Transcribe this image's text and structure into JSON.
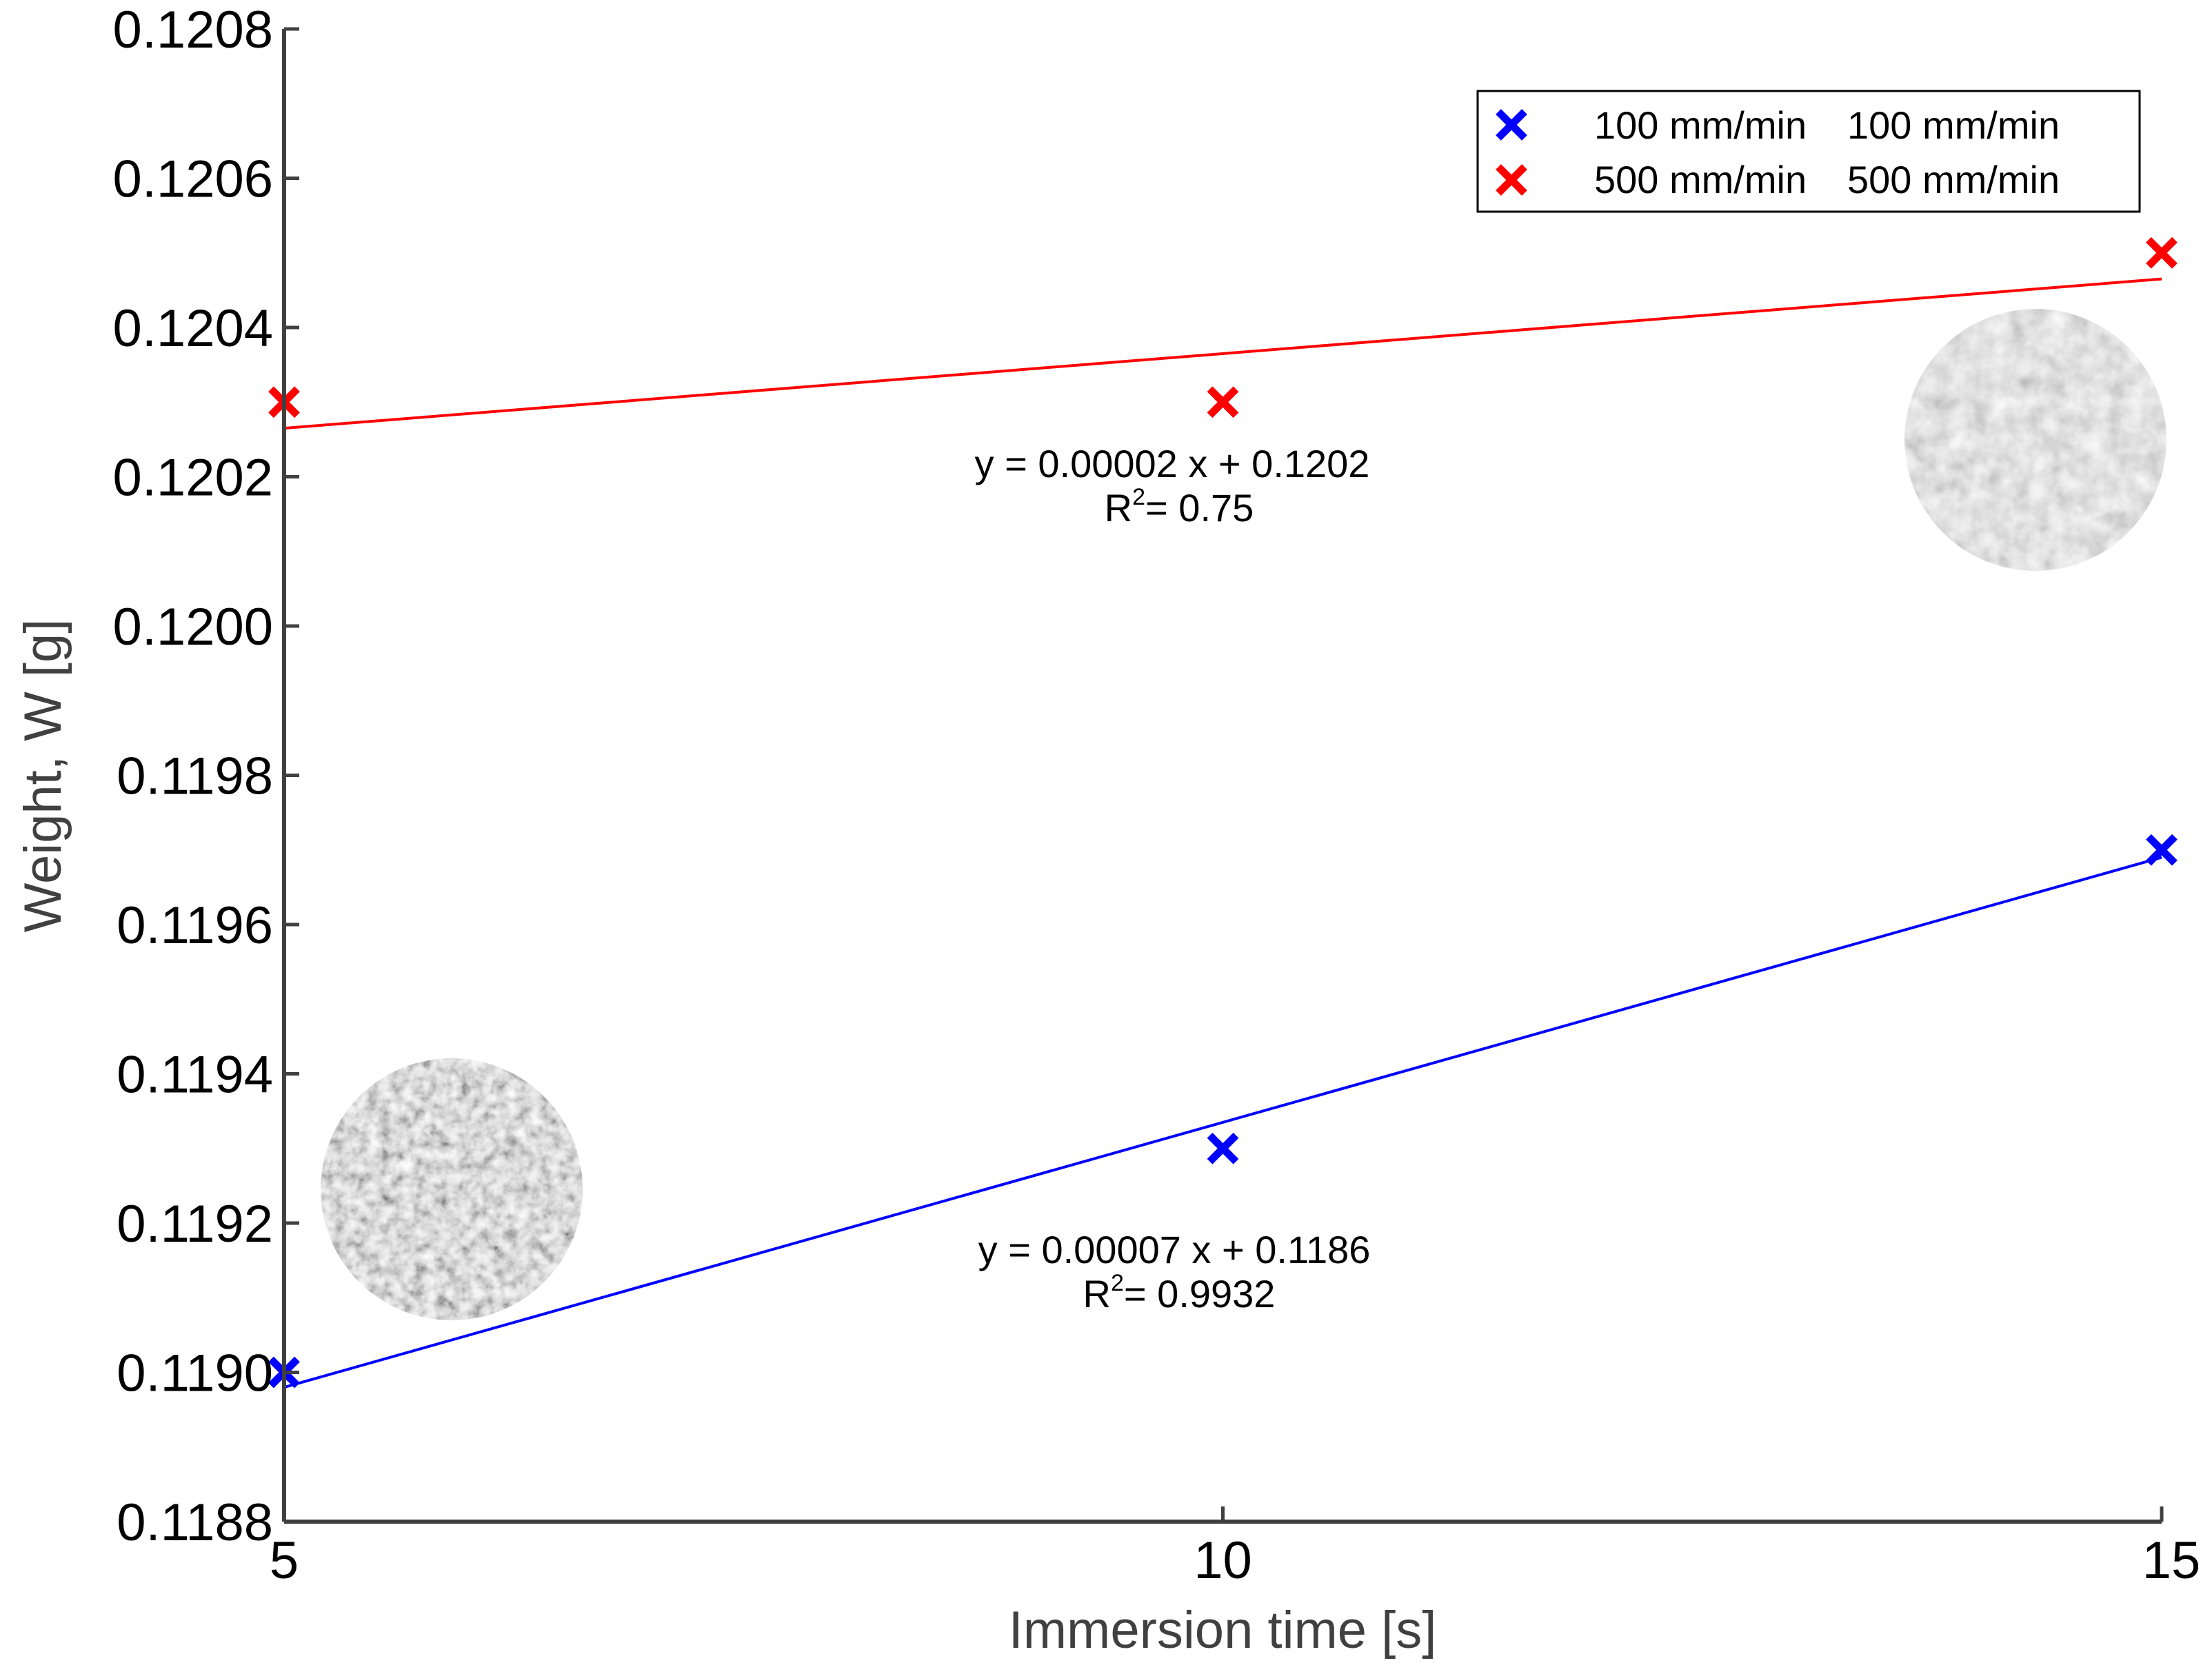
{
  "chart_data": {
    "type": "scatter",
    "title": "",
    "xlabel": "Immersion time [s]",
    "ylabel": "Weight, W [g]",
    "xlim": [
      5,
      15
    ],
    "ylim": [
      0.1188,
      0.1208
    ],
    "x_ticks": [
      5,
      10,
      15
    ],
    "x_tick_labels": [
      "5",
      "10",
      "15"
    ],
    "y_ticks": [
      0.1188,
      0.119,
      0.1192,
      0.1194,
      0.1196,
      0.1198,
      0.12,
      0.1202,
      0.1204,
      0.1206,
      0.1208
    ],
    "y_tick_labels": [
      "0.1188",
      "0.1190",
      "0.1192",
      "0.1194",
      "0.1196",
      "0.1198",
      "0.1200",
      "0.1202",
      "0.1204",
      "0.1206",
      "0.1208"
    ],
    "grid": false,
    "legend_position": "top-right",
    "series": [
      {
        "name": "100 mm/min",
        "legend_label": "100 mm/min",
        "legend_label2": "100 mm/min",
        "color": "#0000ff",
        "marker": "x",
        "x": [
          5,
          10,
          15
        ],
        "y": [
          0.119,
          0.1193,
          0.1197
        ],
        "fit": {
          "x_range": [
            5,
            15
          ],
          "y_range": [
            0.11898,
            0.11969
          ],
          "equation": "y = 0.00007 x + 0.1186",
          "r2_label": "R",
          "r2_sup": "2",
          "r2_value": "= 0.9932"
        }
      },
      {
        "name": "500 mm/min",
        "legend_label": "500 mm/min",
        "legend_label2": "500 mm/min",
        "color": "#ff0000",
        "marker": "x",
        "x": [
          5,
          10,
          15
        ],
        "y": [
          0.1203,
          0.1203,
          0.1205
        ],
        "fit": {
          "x_range": [
            5,
            15
          ],
          "y_range": [
            0.120265,
            0.120465
          ],
          "equation": "y = 0.00002 x + 0.1202",
          "r2_label": "R",
          "r2_sup": "2",
          "r2_value": "= 0.75"
        }
      }
    ]
  }
}
